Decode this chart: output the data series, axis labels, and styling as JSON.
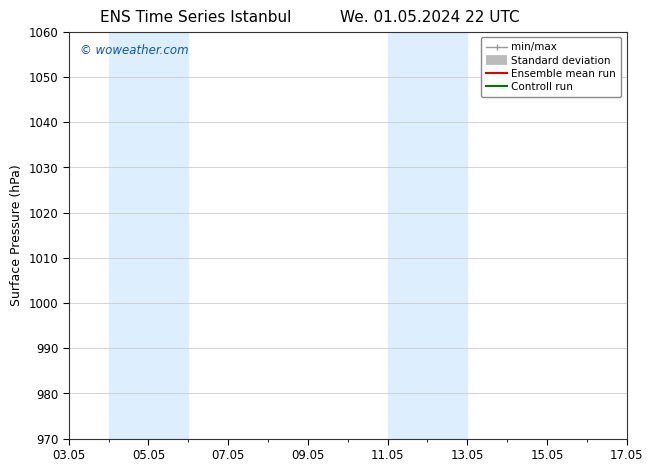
{
  "title_left": "ENS Time Series Istanbul",
  "title_right": "We. 01.05.2024 22 UTC",
  "ylabel": "Surface Pressure (hPa)",
  "ylim": [
    970,
    1060
  ],
  "yticks": [
    970,
    980,
    990,
    1000,
    1010,
    1020,
    1030,
    1040,
    1050,
    1060
  ],
  "xtick_labels": [
    "03.05",
    "05.05",
    "07.05",
    "09.05",
    "11.05",
    "13.05",
    "15.05",
    "17.05"
  ],
  "xtick_positions": [
    0,
    2,
    4,
    6,
    8,
    10,
    12,
    14
  ],
  "shade_bands": [
    {
      "start": 1.0,
      "end": 3.0
    },
    {
      "start": 8.0,
      "end": 10.0
    }
  ],
  "shade_color": "#ddeeff",
  "watermark": "© woweather.com",
  "watermark_color": "#1155aa",
  "legend_labels": [
    "min/max",
    "Standard deviation",
    "Ensemble mean run",
    "Controll run"
  ],
  "legend_colors": [
    "#999999",
    "#bbbbbb",
    "#dd0000",
    "#007700"
  ],
  "bg_color": "#ffffff",
  "grid_color": "#cccccc",
  "title_fontsize": 11,
  "tick_fontsize": 8.5,
  "ylabel_fontsize": 9
}
